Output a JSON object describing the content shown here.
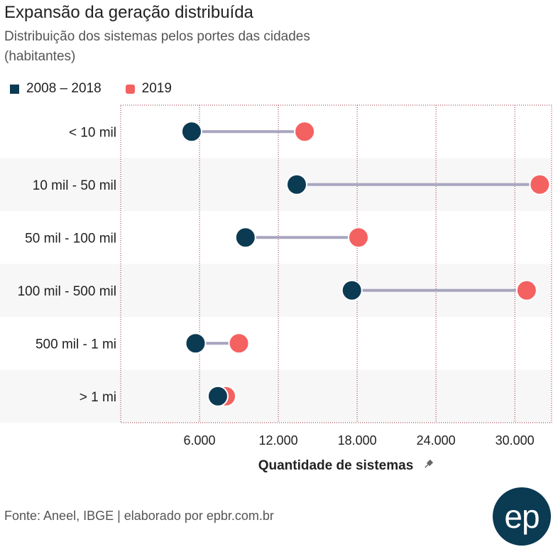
{
  "header": {
    "title": "Expansão da geração distribuída",
    "subtitle": "Distribuição dos sistemas pelos portes das cidades (habitantes)"
  },
  "legend": {
    "items": [
      {
        "label": "2008 – 2018",
        "color": "#0b3a53"
      },
      {
        "label": "2019",
        "color": "#f46161"
      }
    ]
  },
  "chart_data": {
    "type": "dumbbell",
    "title": "Expansão da geração distribuída",
    "subtitle": "Distribuição dos sistemas pelos portes das cidades (habitantes)",
    "xlabel": "Quantidade de sistemas",
    "ylabel": "",
    "categories": [
      "< 10 mil",
      "10 mil - 50 mil",
      "50 mil - 100 mil",
      "100 mil - 500 mil",
      "500 mil - 1 mi",
      "> 1 mi"
    ],
    "series": [
      {
        "name": "2008 – 2018",
        "color": "#0b3a53",
        "values": [
          5400,
          13400,
          9500,
          17600,
          5700,
          7400
        ]
      },
      {
        "name": "2019",
        "color": "#f46161",
        "values": [
          14000,
          31900,
          18100,
          30900,
          9000,
          8000
        ]
      }
    ],
    "xlim": [
      0,
      32800
    ],
    "xticks": [
      6000,
      12000,
      18000,
      24000,
      30000
    ],
    "xtick_labels": [
      "6.000",
      "12.000",
      "18.000",
      "24.000",
      "30.000"
    ],
    "grid": "vertical dotted",
    "connector_color": "#a7a5be",
    "legend_position": "top-left"
  },
  "footer": {
    "source": "Fonte: Aneel, IBGE | elaborado por epbr.com.br",
    "logo_text": "ep"
  }
}
